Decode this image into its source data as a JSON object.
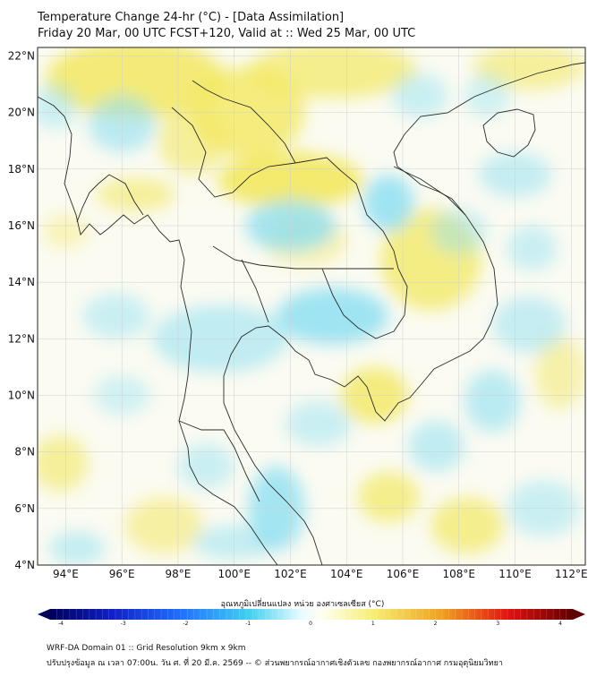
{
  "header": {
    "title_line1": "Temperature Change 24-hr (°C) - [Data Assimilation]",
    "title_line2": "Friday 20 Mar, 00 UTC FCST+120, Valid at :: Wed 25 Mar, 00 UTC"
  },
  "map": {
    "lat_labels": [
      "22°N",
      "20°N",
      "18°N",
      "16°N",
      "14°N",
      "12°N",
      "10°N",
      "8°N",
      "6°N",
      "4°N"
    ],
    "lon_labels": [
      "94°E",
      "96°E",
      "98°E",
      "100°E",
      "102°E",
      "104°E",
      "106°E",
      "108°E",
      "110°E",
      "112°E"
    ],
    "lat_range": [
      4,
      22.3
    ],
    "lon_range": [
      93,
      112.5
    ],
    "colors": {
      "warm": "#f2e860",
      "cool": "#8fe0f2",
      "border": "#333333"
    }
  },
  "colorbar": {
    "title": "อุณหภูมิเปลี่ยนแปลง หน่วย องศาเซลเซียส (°C)",
    "ticks": [
      "-4",
      "-3",
      "-2",
      "-1",
      "0",
      "1",
      "2",
      "3",
      "4"
    ],
    "range": [
      -4,
      4
    ]
  },
  "footer": {
    "line1": "WRF-DA Domain 01 :: Grid Resolution 9km x 9km",
    "line2": "ปรับปรุงข้อมูล ณ เวลา 07:00น. วัน ศ. ที่ 20 มี.ค. 2569 -- © ส่วนพยากรณ์อากาศเชิงตัวเลข กองพยากรณ์อากาศ กรมอุตุนิยมวิทยา"
  }
}
